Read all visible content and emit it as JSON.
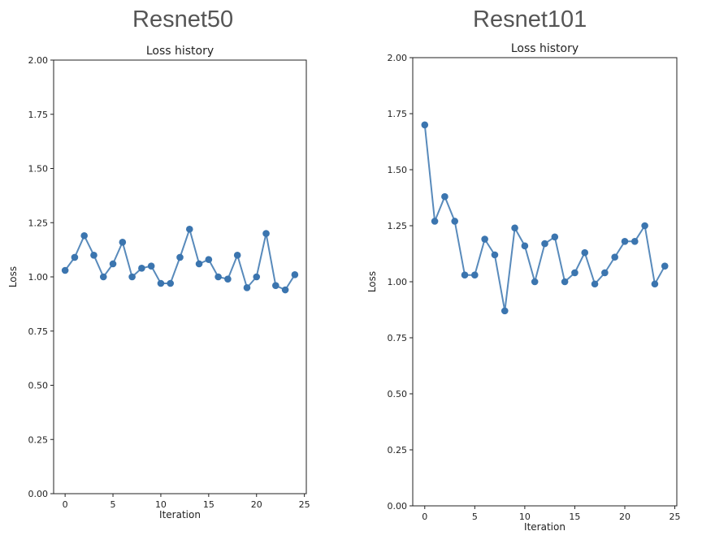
{
  "figures": [
    {
      "heading": "Resnet50"
    },
    {
      "heading": "Resnet101"
    }
  ],
  "chart_data": [
    {
      "type": "line",
      "title": "Loss history",
      "xlabel": "Iteration",
      "ylabel": "Loss",
      "xlim": [
        -1.2,
        25.2
      ],
      "ylim": [
        0,
        2
      ],
      "xticks": [
        0,
        5,
        10,
        15,
        20,
        25
      ],
      "yticks": [
        0.0,
        0.25,
        0.5,
        0.75,
        1.0,
        1.25,
        1.5,
        1.75,
        2.0
      ],
      "ytick_labels": [
        "0.00",
        "0.25",
        "0.50",
        "0.75",
        "1.00",
        "1.25",
        "1.50",
        "1.75",
        "2.00"
      ],
      "x": [
        0,
        1,
        2,
        3,
        4,
        5,
        6,
        7,
        8,
        9,
        10,
        11,
        12,
        13,
        14,
        15,
        16,
        17,
        18,
        19,
        20,
        21,
        22,
        23,
        24
      ],
      "values": [
        1.03,
        1.09,
        1.19,
        1.1,
        1.0,
        1.06,
        1.16,
        1.0,
        1.04,
        1.05,
        0.97,
        0.97,
        1.09,
        1.22,
        1.06,
        1.08,
        1.0,
        0.99,
        1.1,
        0.95,
        1.0,
        1.2,
        0.96,
        0.94,
        1.01
      ],
      "color": "#3b75af"
    },
    {
      "type": "line",
      "title": "Loss history",
      "xlabel": "Iteration",
      "ylabel": "Loss",
      "xlim": [
        -1.2,
        25.2
      ],
      "ylim": [
        0,
        2
      ],
      "xticks": [
        0,
        5,
        10,
        15,
        20,
        25
      ],
      "yticks": [
        0.0,
        0.25,
        0.5,
        0.75,
        1.0,
        1.25,
        1.5,
        1.75,
        2.0
      ],
      "ytick_labels": [
        "0.00",
        "0.25",
        "0.50",
        "0.75",
        "1.00",
        "1.25",
        "1.50",
        "1.75",
        "2.00"
      ],
      "x": [
        0,
        1,
        2,
        3,
        4,
        5,
        6,
        7,
        8,
        9,
        10,
        11,
        12,
        13,
        14,
        15,
        16,
        17,
        18,
        19,
        20,
        21,
        22,
        23,
        24
      ],
      "values": [
        1.7,
        1.27,
        1.38,
        1.27,
        1.03,
        1.03,
        1.19,
        1.12,
        0.87,
        1.24,
        1.16,
        1.0,
        1.17,
        1.2,
        1.0,
        1.04,
        1.13,
        0.99,
        1.04,
        1.11,
        1.18,
        1.18,
        1.25,
        0.99,
        1.07
      ],
      "color": "#3b75af"
    }
  ]
}
